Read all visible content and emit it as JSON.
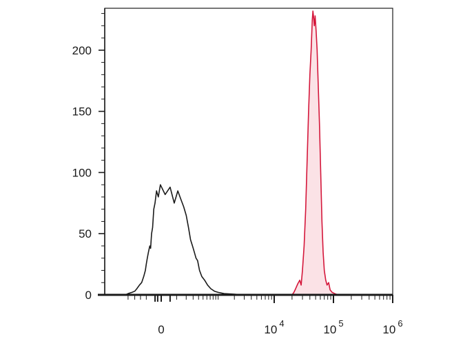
{
  "chart_data": {
    "type": "line",
    "title": "",
    "xlabel": "",
    "ylabel": "",
    "x_scale": "biexponential",
    "y_range": [
      0,
      232
    ],
    "grid": false,
    "legend": "none",
    "y_ticks": [
      {
        "value": 0,
        "label": "0"
      },
      {
        "value": 50,
        "label": "50"
      },
      {
        "value": 100,
        "label": "100"
      },
      {
        "value": 150,
        "label": "150"
      },
      {
        "value": 200,
        "label": "200"
      }
    ],
    "x_ticks": [
      {
        "value": 0,
        "base": "0",
        "exp": ""
      },
      {
        "value": 10000,
        "base": "10",
        "exp": "4"
      },
      {
        "value": 100000,
        "base": "10",
        "exp": "5"
      },
      {
        "value": 1000000,
        "base": "10",
        "exp": "6"
      }
    ],
    "series": [
      {
        "color": "#1a1a1a",
        "fill": "none",
        "points": [
          [
            -4000,
            0
          ],
          [
            -3000,
            1
          ],
          [
            -2000,
            2
          ],
          [
            -1500,
            3
          ],
          [
            -1200,
            5
          ],
          [
            -900,
            8
          ],
          [
            -700,
            10
          ],
          [
            -550,
            15
          ],
          [
            -450,
            20
          ],
          [
            -400,
            25
          ],
          [
            -350,
            30
          ],
          [
            -300,
            35
          ],
          [
            -250,
            40
          ],
          [
            -220,
            38
          ],
          [
            -190,
            50
          ],
          [
            -160,
            55
          ],
          [
            -130,
            70
          ],
          [
            -100,
            75
          ],
          [
            -70,
            85
          ],
          [
            -40,
            80
          ],
          [
            -10,
            90
          ],
          [
            20,
            82
          ],
          [
            50,
            88
          ],
          [
            80,
            75
          ],
          [
            110,
            85
          ],
          [
            140,
            78
          ],
          [
            170,
            72
          ],
          [
            200,
            65
          ],
          [
            230,
            55
          ],
          [
            260,
            45
          ],
          [
            290,
            40
          ],
          [
            320,
            35
          ],
          [
            350,
            30
          ],
          [
            380,
            28
          ],
          [
            420,
            20
          ],
          [
            470,
            15
          ],
          [
            540,
            12
          ],
          [
            620,
            8
          ],
          [
            720,
            5
          ],
          [
            850,
            3
          ],
          [
            1000,
            2
          ],
          [
            1300,
            1
          ],
          [
            2000,
            0.5
          ],
          [
            3000,
            0
          ],
          [
            8000,
            0
          ]
        ]
      },
      {
        "color": "#d4163a",
        "fill": "#fbe2e6",
        "points": [
          [
            20000,
            0
          ],
          [
            21500,
            2
          ],
          [
            23000,
            5
          ],
          [
            25000,
            9
          ],
          [
            27000,
            12
          ],
          [
            28500,
            8
          ],
          [
            30000,
            20
          ],
          [
            32000,
            40
          ],
          [
            34000,
            70
          ],
          [
            36000,
            110
          ],
          [
            38000,
            150
          ],
          [
            40000,
            180
          ],
          [
            42000,
            200
          ],
          [
            44000,
            225
          ],
          [
            45000,
            232
          ],
          [
            46000,
            228
          ],
          [
            47500,
            220
          ],
          [
            49000,
            228
          ],
          [
            51000,
            215
          ],
          [
            53000,
            200
          ],
          [
            55000,
            175
          ],
          [
            58000,
            140
          ],
          [
            61000,
            100
          ],
          [
            64000,
            60
          ],
          [
            67000,
            35
          ],
          [
            70000,
            20
          ],
          [
            74000,
            12
          ],
          [
            78000,
            8
          ],
          [
            83000,
            10
          ],
          [
            88000,
            4
          ],
          [
            95000,
            2
          ],
          [
            105000,
            1
          ],
          [
            120000,
            0
          ]
        ]
      }
    ]
  }
}
